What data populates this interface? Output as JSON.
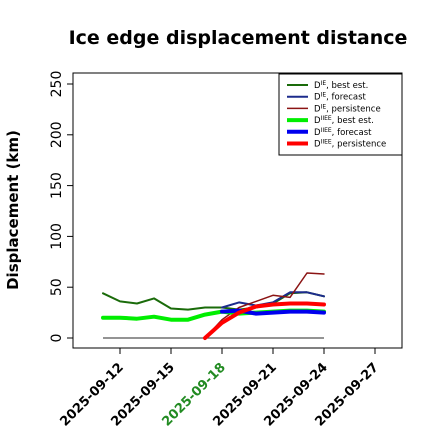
{
  "colors": {
    "dark_green": "#1a6b0a",
    "dark_blue": "#1c2b8c",
    "dark_red": "#8b1414",
    "bright_green": "#00ee00",
    "bright_blue": "#0000ee",
    "bright_red": "#ff0000",
    "highlight_date": "#228b22",
    "reference_line": "#555555"
  },
  "chart_data": {
    "type": "line",
    "title": "Ice edge displacement distance",
    "xlabel": "",
    "ylabel": "Displacement (km)",
    "ylim": [
      0,
      260
    ],
    "y_ticks": [
      0,
      50,
      100,
      150,
      200,
      250
    ],
    "xlim": [
      "2025-09-09",
      "2025-09-28"
    ],
    "x_ticks": [
      "2025-09-12",
      "2025-09-15",
      "2025-09-18",
      "2025-09-21",
      "2025-09-24",
      "2025-09-27"
    ],
    "highlight_tick": "2025-09-18",
    "grid": false,
    "legend_position": "top-right",
    "reference_line": {
      "y": 0,
      "x_start": "2025-09-11",
      "x_end": "2025-09-24"
    },
    "series": [
      {
        "name": "D^IE, best est.",
        "legend_main": "D",
        "legend_sup": "IE",
        "legend_rest": ", best est.",
        "color_key": "dark_green",
        "width": 2,
        "x": [
          "2025-09-11",
          "2025-09-12",
          "2025-09-13",
          "2025-09-14",
          "2025-09-15",
          "2025-09-16",
          "2025-09-17",
          "2025-09-18",
          "2025-09-19",
          "2025-09-20",
          "2025-09-21",
          "2025-09-22",
          "2025-09-23",
          "2025-09-24"
        ],
        "y": [
          44,
          36,
          34,
          39,
          29,
          28,
          30,
          30,
          28,
          30,
          34,
          44,
          45,
          41
        ]
      },
      {
        "name": "D^IE, forecast",
        "legend_main": "D",
        "legend_sup": "IE",
        "legend_rest": ", forecast",
        "color_key": "dark_blue",
        "width": 2,
        "x": [
          "2025-09-18",
          "2025-09-19",
          "2025-09-20",
          "2025-09-21",
          "2025-09-22",
          "2025-09-23",
          "2025-09-24"
        ],
        "y": [
          30,
          35,
          32,
          35,
          45,
          45,
          41
        ]
      },
      {
        "name": "D^IE, persistence",
        "legend_main": "D",
        "legend_sup": "IE",
        "legend_rest": ", persistence",
        "color_key": "dark_red",
        "width": 1.5,
        "x": [
          "2025-09-17",
          "2025-09-18",
          "2025-09-19",
          "2025-09-20",
          "2025-09-21",
          "2025-09-22",
          "2025-09-23",
          "2025-09-24"
        ],
        "y": [
          0,
          18,
          30,
          36,
          42,
          40,
          64,
          63
        ]
      },
      {
        "name": "D^IIEE, best est.",
        "legend_main": "D",
        "legend_sup": "IIEE",
        "legend_rest": ", best est.",
        "color_key": "bright_green",
        "width": 4,
        "x": [
          "2025-09-11",
          "2025-09-12",
          "2025-09-13",
          "2025-09-14",
          "2025-09-15",
          "2025-09-16",
          "2025-09-17",
          "2025-09-18",
          "2025-09-19",
          "2025-09-20",
          "2025-09-21",
          "2025-09-22",
          "2025-09-23",
          "2025-09-24"
        ],
        "y": [
          20,
          20,
          19,
          21,
          18,
          18,
          23,
          26,
          24,
          25,
          26,
          27,
          27,
          26
        ]
      },
      {
        "name": "D^IIEE, forecast",
        "legend_main": "D",
        "legend_sup": "IIEE",
        "legend_rest": ", forecast",
        "color_key": "bright_blue",
        "width": 4,
        "x": [
          "2025-09-18",
          "2025-09-19",
          "2025-09-20",
          "2025-09-21",
          "2025-09-22",
          "2025-09-23",
          "2025-09-24"
        ],
        "y": [
          26,
          27,
          24,
          25,
          26,
          26,
          25
        ]
      },
      {
        "name": "D^IIEE, persistence",
        "legend_main": "D",
        "legend_sup": "IIEE",
        "legend_rest": ", persistence",
        "color_key": "bright_red",
        "width": 4,
        "x": [
          "2025-09-17",
          "2025-09-18",
          "2025-09-19",
          "2025-09-20",
          "2025-09-21",
          "2025-09-22",
          "2025-09-23",
          "2025-09-24"
        ],
        "y": [
          0,
          15,
          25,
          31,
          33,
          34,
          34,
          33
        ]
      }
    ]
  }
}
